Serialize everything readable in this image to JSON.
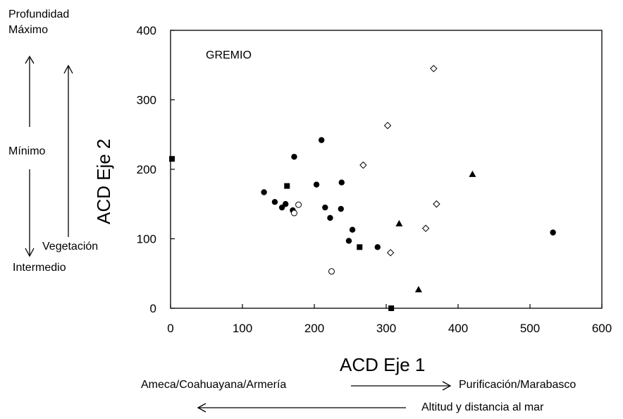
{
  "chart_data": {
    "type": "scatter",
    "title": "",
    "annotation": "GREMIO",
    "xlabel": "ACD Eje 1",
    "ylabel": "ACD Eje 2",
    "xlim": [
      0,
      600
    ],
    "ylim": [
      0,
      400
    ],
    "xticks": [
      "0",
      "100",
      "200",
      "300",
      "400",
      "500",
      "600"
    ],
    "yticks": [
      "0",
      "100",
      "200",
      "300",
      "400"
    ],
    "grid": false,
    "legend": "none",
    "series": [
      {
        "marker": "filled-circle",
        "color": "#000000",
        "points": [
          [
            130,
            167
          ],
          [
            145,
            153
          ],
          [
            155,
            145
          ],
          [
            160,
            150
          ],
          [
            170,
            141
          ],
          [
            172,
            218
          ],
          [
            203,
            178
          ],
          [
            210,
            242
          ],
          [
            215,
            145
          ],
          [
            222,
            130
          ],
          [
            237,
            143
          ],
          [
            238,
            181
          ],
          [
            248,
            97
          ],
          [
            253,
            113
          ],
          [
            288,
            88
          ],
          [
            532,
            109
          ]
        ]
      },
      {
        "marker": "open-circle",
        "color": "#000000",
        "points": [
          [
            172,
            137
          ],
          [
            178,
            149
          ],
          [
            224,
            53
          ]
        ]
      },
      {
        "marker": "filled-square",
        "color": "#000000",
        "points": [
          [
            2,
            215
          ],
          [
            162,
            176
          ],
          [
            263,
            88
          ],
          [
            307,
            0
          ]
        ]
      },
      {
        "marker": "open-diamond",
        "color": "#000000",
        "points": [
          [
            268,
            206
          ],
          [
            302,
            263
          ],
          [
            306,
            80
          ],
          [
            355,
            115
          ],
          [
            366,
            345
          ],
          [
            370,
            150
          ]
        ]
      },
      {
        "marker": "filled-triangle",
        "color": "#000000",
        "points": [
          [
            318,
            122
          ],
          [
            345,
            27
          ],
          [
            420,
            193
          ]
        ]
      }
    ]
  },
  "left_annotations": {
    "profundidad": "Profundidad",
    "maximo": "Máximo",
    "minimo": "Mínimo",
    "intermedio": "Intermedio",
    "vegetacion": "Vegetación"
  },
  "bottom_annotations": {
    "left_rivers": "Ameca/Coahuayana/Armería",
    "right_rivers": "Purificación/Marabasco",
    "altitude": "Altitud y distancia al mar"
  }
}
